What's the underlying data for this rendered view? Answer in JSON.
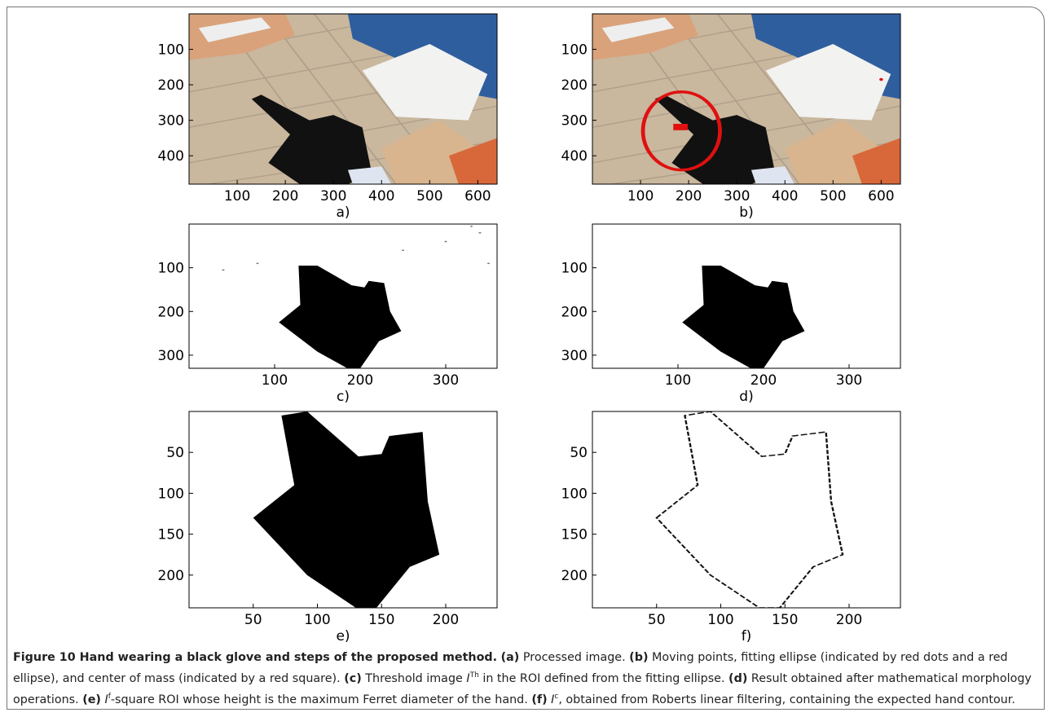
{
  "panels": [
    {
      "label": "a)",
      "xlim": [
        0,
        640
      ],
      "ylim": [
        0,
        480
      ],
      "xticks": [
        100,
        200,
        300,
        400,
        500,
        600
      ],
      "yticks": [
        100,
        200,
        300,
        400
      ]
    },
    {
      "label": "b)",
      "xlim": [
        0,
        640
      ],
      "ylim": [
        0,
        480
      ],
      "xticks": [
        100,
        200,
        300,
        400,
        500,
        600
      ],
      "yticks": [
        100,
        200,
        300,
        400
      ]
    },
    {
      "label": "c)",
      "xlim": [
        0,
        360
      ],
      "ylim": [
        0,
        330
      ],
      "xticks": [
        100,
        200,
        300
      ],
      "yticks": [
        100,
        200,
        300
      ]
    },
    {
      "label": "d)",
      "xlim": [
        0,
        360
      ],
      "ylim": [
        0,
        330
      ],
      "xticks": [
        100,
        200,
        300
      ],
      "yticks": [
        100,
        200,
        300
      ]
    },
    {
      "label": "e)",
      "xlim": [
        0,
        240
      ],
      "ylim": [
        0,
        240
      ],
      "xticks": [
        50,
        100,
        150,
        200
      ],
      "yticks": [
        50,
        100,
        150,
        200
      ]
    },
    {
      "label": "f)",
      "xlim": [
        0,
        240
      ],
      "ylim": [
        0,
        240
      ],
      "xticks": [
        50,
        100,
        150,
        200
      ],
      "yticks": [
        50,
        100,
        150,
        200
      ]
    }
  ],
  "caption": {
    "title": "Figure 10 Hand wearing a black glove and steps of the proposed method.",
    "a_label": "(a)",
    "a_text": "Processed image.",
    "b_label": "(b)",
    "b_text": "Moving points, fitting ellipse (indicated by red dots and a red ellipse), and center of mass (indicated by a red square).",
    "c_label": "(c)",
    "c_text": "Threshold image",
    "c_var": "I",
    "c_sup": "Th",
    "c_rest": "in the ROI defined from the fitting ellipse.",
    "d_label": "(d)",
    "d_text": "Result obtained after mathematical morphology operations.",
    "e_label": "(e)",
    "e_var": "I",
    "e_sup": "f",
    "e_rest": "-square ROI whose height is the maximum Ferret diameter of the hand.",
    "f_label": "(f)",
    "f_var": "I",
    "f_sup": "c",
    "f_rest": ", obtained from Roberts linear filtering, containing the expected hand contour."
  }
}
